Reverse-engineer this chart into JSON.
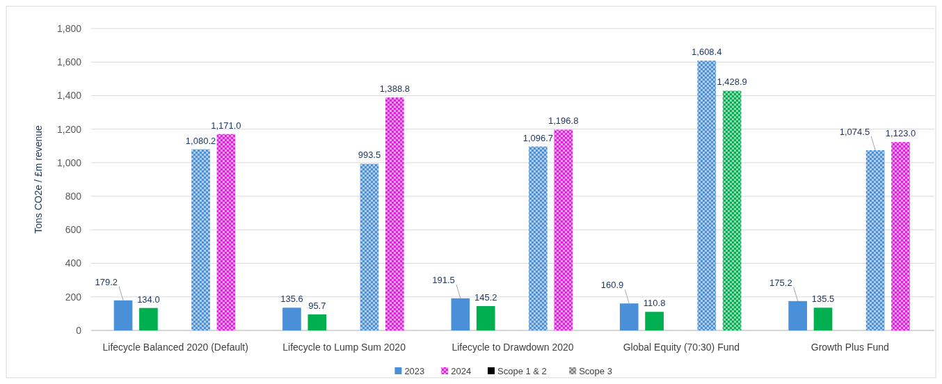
{
  "chart_data": {
    "type": "bar",
    "ylabel": "Tons CO2e / £m revenue",
    "categories": [
      "Lifecycle Balanced 2020 (Default)",
      "Lifecycle to Lump Sum 2020",
      "Lifecycle to Drawdown 2020",
      "Global Equity (70:30) Fund",
      "Growth Plus Fund"
    ],
    "series": [
      {
        "name": "2023",
        "color": "#4a90d9",
        "values": [
          179.2,
          135.6,
          191.5,
          160.9,
          175.2
        ],
        "value_labels": [
          "179.2",
          "135.6",
          "191.5",
          "160.9",
          "175.2"
        ]
      },
      {
        "color": "#00b050",
        "values": [
          134.0,
          95.7,
          145.2,
          110.8,
          135.5
        ],
        "value_labels": [
          "134.0",
          "95.7",
          "145.2",
          "110.8",
          "135.5"
        ]
      },
      {
        "color": "#4a90d9",
        "values": [
          1080.2,
          993.5,
          1096.7,
          1608.4,
          1074.5
        ],
        "value_labels": [
          "1,080.2",
          "993.5",
          "1,096.7",
          "1,608.4",
          "1,074.5"
        ]
      },
      {
        "name": "2024",
        "color": "#e61ee6",
        "colors": [
          "#e61ee6",
          "#e61ee6",
          "#e61ee6",
          "#00b050",
          "#e61ee6"
        ],
        "values": [
          1171.0,
          1388.8,
          1196.8,
          1428.9,
          1123.0
        ],
        "value_labels": [
          "1,171.0",
          "1,388.8",
          "1,196.8",
          "1,428.9",
          "1,123.0"
        ]
      },
      {
        "name": "Scope 1 & 2",
        "color": "#000000",
        "values": [
          null,
          null,
          null,
          null,
          null
        ]
      },
      {
        "name": "Scope 3",
        "color": "#7f7f7f",
        "values": [
          null,
          null,
          null,
          null,
          null
        ]
      }
    ],
    "ylim": [
      0,
      1800
    ],
    "yticks": [
      {
        "value": 0,
        "label": "0"
      },
      {
        "value": 200,
        "label": "200"
      },
      {
        "value": 400,
        "label": "400"
      },
      {
        "value": 600,
        "label": "600"
      },
      {
        "value": 800,
        "label": "800"
      },
      {
        "value": 1000,
        "label": "1,000"
      },
      {
        "value": 1200,
        "label": "1,200"
      },
      {
        "value": 1400,
        "label": "1,400"
      },
      {
        "value": 1600,
        "label": "1,600"
      },
      {
        "value": 1800,
        "label": "1,800"
      }
    ],
    "grid": "y",
    "legend": "bottom"
  }
}
